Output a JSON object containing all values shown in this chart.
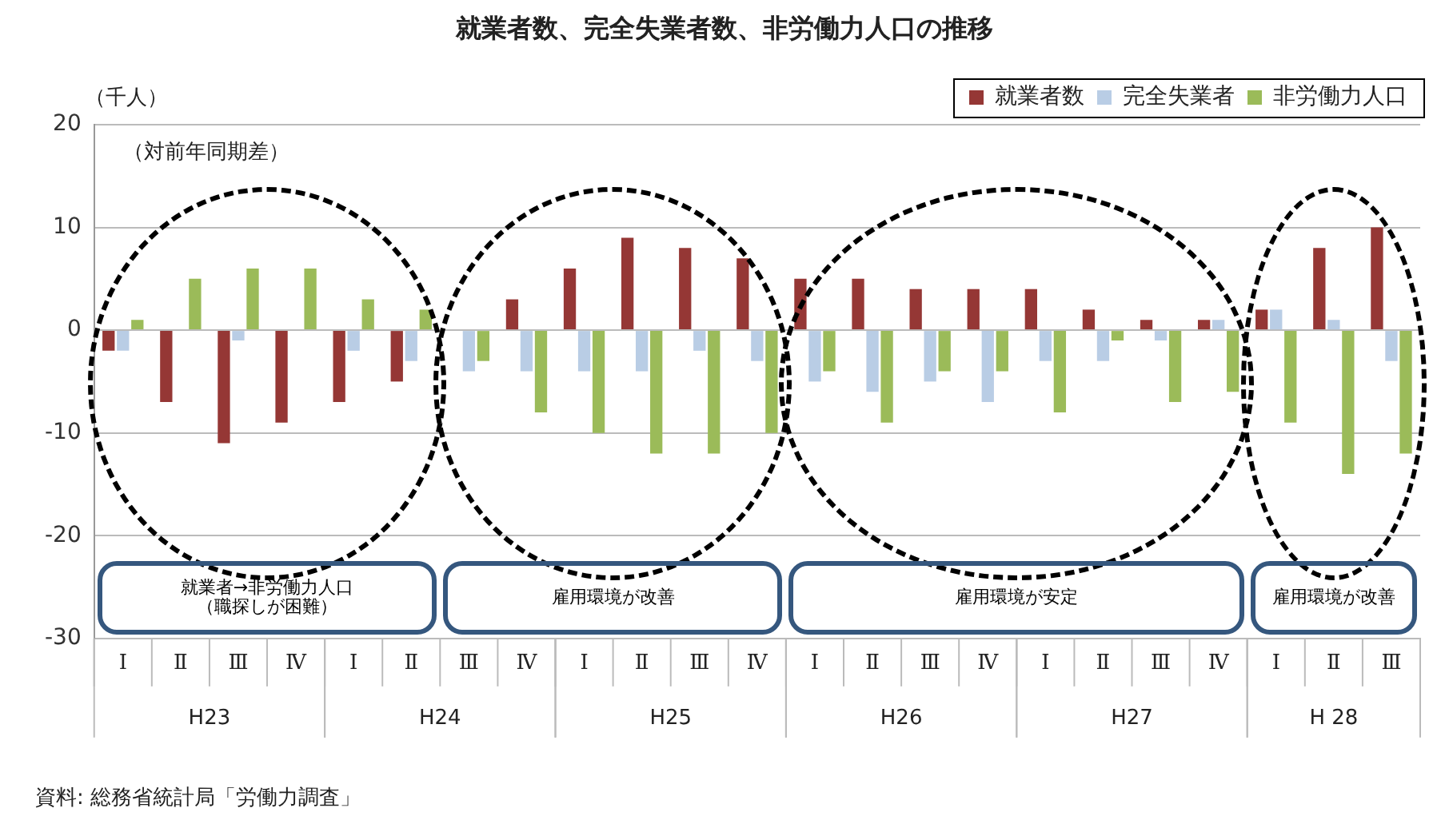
{
  "chart_data": {
    "type": "bar",
    "title": "就業者数、完全失業者数、非労働力人口の推移",
    "ylabel": "（千人）",
    "categories": [
      "Ⅰ",
      "Ⅱ",
      "Ⅲ",
      "Ⅳ",
      "Ⅰ",
      "Ⅱ",
      "Ⅲ",
      "Ⅳ",
      "Ⅰ",
      "Ⅱ",
      "Ⅲ",
      "Ⅳ",
      "Ⅰ",
      "Ⅱ",
      "Ⅲ",
      "Ⅳ",
      "Ⅰ",
      "Ⅱ",
      "Ⅲ",
      "Ⅳ",
      "Ⅰ",
      "Ⅱ",
      "Ⅲ"
    ],
    "series": [
      {
        "name": "就業者数",
        "color": "#953735",
        "values": [
          -2,
          -7,
          -11,
          -9,
          -7,
          -5,
          0,
          3,
          6,
          9,
          8,
          7,
          5,
          5,
          4,
          4,
          4,
          2,
          1,
          1,
          2,
          8,
          10
        ]
      },
      {
        "name": "完全失業者",
        "color": "#b9cde5",
        "values": [
          -2,
          0,
          -1,
          0,
          -2,
          -3,
          -4,
          -4,
          -4,
          -4,
          -2,
          -3,
          -5,
          -6,
          -5,
          -7,
          -3,
          -3,
          -1,
          1,
          2,
          1,
          -3
        ]
      },
      {
        "name": "非労働力人口",
        "color": "#9bbb59",
        "values": [
          1,
          5,
          6,
          6,
          3,
          2,
          -3,
          -8,
          -10,
          -12,
          -12,
          -10,
          -4,
          -9,
          -4,
          -4,
          -8,
          -1,
          -7,
          -6,
          -9,
          -14,
          -12
        ]
      }
    ],
    "ylim": [
      -30,
      20
    ],
    "yticks": [
      -30,
      -20,
      -10,
      0,
      10,
      20
    ],
    "grid": "y",
    "legend": "top right",
    "annotations": [
      "（対前年同期差）",
      "就業者→非労働力人口（職探しが困難）",
      "雇用環境が改善",
      "雇用環境が安定",
      "雇用環境が改善",
      "H23",
      "H24",
      "H25",
      "H26",
      "H27",
      "H 28",
      "資料: 総務省統計局「労働力調査」"
    ]
  }
}
